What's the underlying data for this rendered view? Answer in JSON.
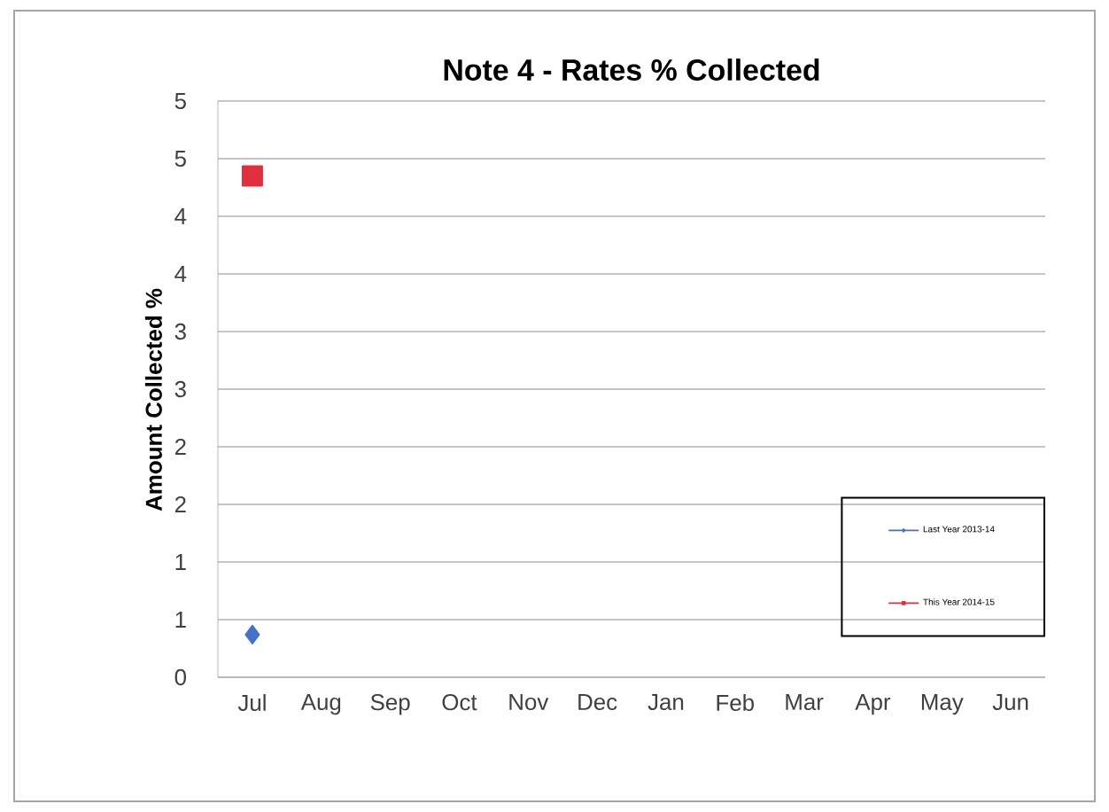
{
  "chart_data": {
    "type": "line",
    "title": "Note  4 - Rates % Collected",
    "ylabel": "Amount Collected %",
    "categories": [
      "Jul",
      "Aug",
      "Sep",
      "Oct",
      "Nov",
      "Dec",
      "Jan",
      "Feb",
      "Mar",
      "Apr",
      "May",
      "Jun"
    ],
    "series": [
      {
        "name": "Last Year 2013-14",
        "color": "#4472c4",
        "marker": "diamond",
        "values": [
          0.37,
          null,
          null,
          null,
          null,
          null,
          null,
          null,
          null,
          null,
          null,
          null
        ]
      },
      {
        "name": "This Year 2014-15",
        "color": "#e03040",
        "marker": "square",
        "values": [
          4.35,
          null,
          null,
          null,
          null,
          null,
          null,
          null,
          null,
          null,
          null,
          null
        ]
      }
    ],
    "ylim": [
      0,
      5
    ],
    "yticks": [
      {
        "value": 0,
        "label": "0"
      },
      {
        "value": 0.5,
        "label": "1"
      },
      {
        "value": 1,
        "label": "1"
      },
      {
        "value": 1.5,
        "label": "2"
      },
      {
        "value": 2,
        "label": "2"
      },
      {
        "value": 2.5,
        "label": "3"
      },
      {
        "value": 3,
        "label": "3"
      },
      {
        "value": 3.5,
        "label": "4"
      },
      {
        "value": 4,
        "label": "4"
      },
      {
        "value": 4.5,
        "label": "5"
      },
      {
        "value": 5,
        "label": "5"
      }
    ],
    "grid": "y",
    "legend": "bottom right"
  }
}
